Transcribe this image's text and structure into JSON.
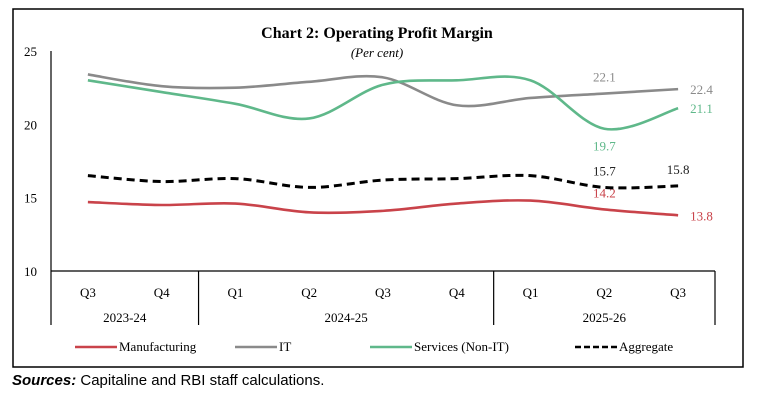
{
  "chart_data": {
    "type": "line",
    "title": "Chart 2: Operating Profit Margin",
    "subtitle": "(Per cent)",
    "ylim": [
      10,
      25
    ],
    "yticks": [
      "10",
      "15",
      "20",
      "25"
    ],
    "categories": [
      "Q3",
      "Q4",
      "Q1",
      "Q2",
      "Q3",
      "Q4",
      "Q1",
      "Q2",
      "Q3"
    ],
    "years": [
      {
        "label": "2023-24",
        "span": 2
      },
      {
        "label": "2024-25",
        "span": 4
      },
      {
        "label": "2025-26",
        "span": 3
      }
    ],
    "series": [
      {
        "name": "Manufacturing",
        "color": "#c9434a",
        "dash": false,
        "values": [
          14.7,
          14.5,
          14.6,
          14.0,
          14.1,
          14.6,
          14.8,
          14.2,
          13.8
        ],
        "labels": [
          {
            "i": 7,
            "text": "14.2",
            "pos": "above"
          },
          {
            "i": 8,
            "text": "13.8",
            "pos": "right"
          }
        ]
      },
      {
        "name": "IT",
        "color": "#8a8a8a",
        "dash": false,
        "values": [
          23.4,
          22.6,
          22.5,
          22.9,
          23.2,
          21.3,
          21.8,
          22.1,
          22.4
        ],
        "labels": [
          {
            "i": 7,
            "text": "22.1",
            "pos": "above"
          },
          {
            "i": 8,
            "text": "22.4",
            "pos": "right"
          }
        ]
      },
      {
        "name": "Services (Non-IT)",
        "color": "#5fb88a",
        "dash": false,
        "values": [
          23.0,
          22.2,
          21.4,
          20.4,
          22.7,
          23.0,
          23.0,
          19.7,
          21.1
        ],
        "labels": [
          {
            "i": 7,
            "text": "19.7",
            "pos": "below"
          },
          {
            "i": 8,
            "text": "21.1",
            "pos": "right"
          }
        ]
      },
      {
        "name": "Aggregate",
        "color": "#000000",
        "dash": true,
        "values": [
          16.5,
          16.1,
          16.3,
          15.7,
          16.2,
          16.3,
          16.5,
          15.7,
          15.8
        ],
        "labels": [
          {
            "i": 7,
            "text": "15.7",
            "pos": "above"
          },
          {
            "i": 8,
            "text": "15.8",
            "pos": "above"
          }
        ]
      }
    ],
    "legend": "bottom",
    "grid": false
  },
  "source": {
    "label": "Sources:",
    "text": " Capitaline and RBI staff calculations."
  }
}
